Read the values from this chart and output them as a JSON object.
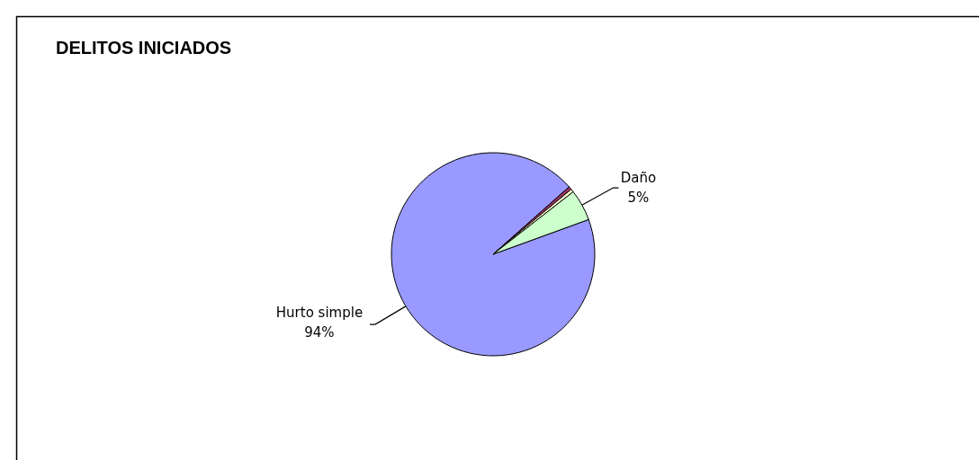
{
  "chart_data": {
    "type": "pie",
    "title": "DELITOS INICIADOS",
    "categories": [
      "Hurto simple",
      null,
      null,
      "Daño"
    ],
    "values": [
      94,
      0.5,
      0.5,
      5
    ],
    "colors": [
      "#9999ff",
      "#993366",
      "#ffffcc",
      "#ccffcc"
    ],
    "value_labels": [
      "94%",
      null,
      null,
      "5%"
    ]
  }
}
